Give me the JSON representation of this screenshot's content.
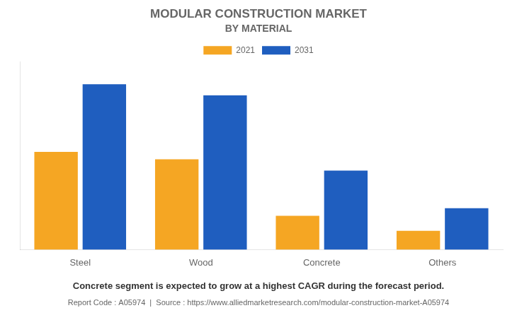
{
  "chart_data": {
    "type": "bar",
    "title": "MODULAR CONSTRUCTION MARKET",
    "subtitle": "BY MATERIAL",
    "categories": [
      "Steel",
      "Wood",
      "Concrete",
      "Others"
    ],
    "series": [
      {
        "name": "2021",
        "color": "#F5A623",
        "values": [
          52,
          48,
          18,
          10
        ]
      },
      {
        "name": "2031",
        "color": "#1F5EBF",
        "values": [
          88,
          82,
          42,
          22
        ]
      }
    ],
    "ylim": [
      0,
      100
    ],
    "grid": false,
    "legend": "top",
    "tick_labels": "x",
    "annotations": [
      "Concrete segment is expected to grow at a highest CAGR during the forecast period.",
      "Report Code : A05974  |  Source : https://www.alliedmarketresearch.com/modular-construction-market-A05974"
    ]
  }
}
